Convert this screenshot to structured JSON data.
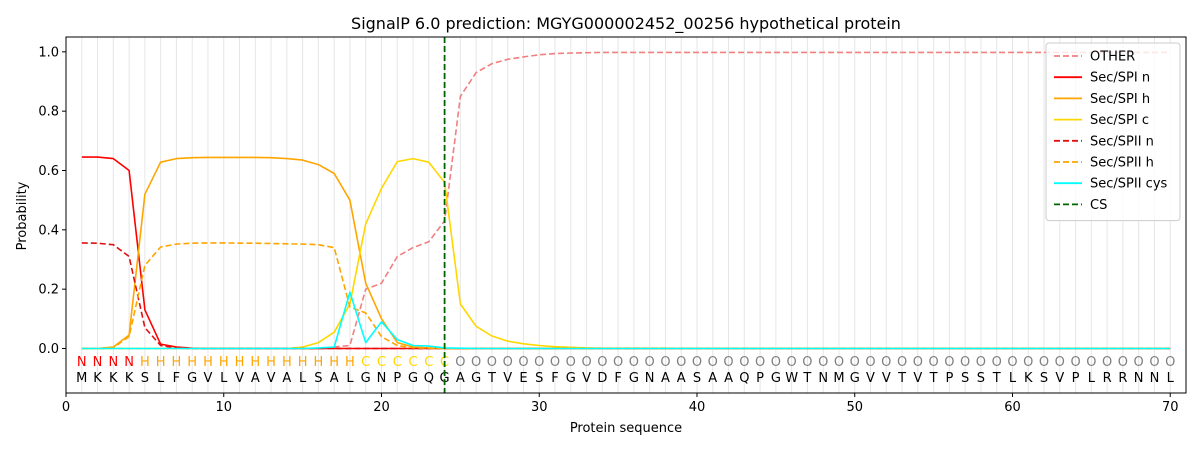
{
  "chart_data": {
    "type": "line",
    "title": "SignalP 6.0 prediction: MGYG000002452_00256 hypothetical protein",
    "xlabel": "Protein sequence",
    "ylabel": "Probability",
    "xlim": [
      0,
      71
    ],
    "ylim": [
      -0.15,
      1.05
    ],
    "x_ticks": [
      0,
      10,
      20,
      30,
      40,
      50,
      60,
      70
    ],
    "y_ticks": [
      0.0,
      0.2,
      0.4,
      0.6,
      0.8,
      1.0
    ],
    "y_tick_labels": [
      "0.0",
      "0.2",
      "0.4",
      "0.6",
      "0.8",
      "1.0"
    ],
    "grid": "vertical lines at each residue",
    "legend_position": "top-right",
    "cleavage_site": 24,
    "sequence": [
      "M",
      "K",
      "K",
      "K",
      "S",
      "L",
      "F",
      "G",
      "V",
      "L",
      "V",
      "A",
      "V",
      "A",
      "L",
      "S",
      "A",
      "L",
      "G",
      "N",
      "P",
      "G",
      "Q",
      "G",
      "A",
      "G",
      "T",
      "V",
      "E",
      "S",
      "F",
      "G",
      "V",
      "D",
      "F",
      "G",
      "N",
      "A",
      "A",
      "S",
      "A",
      "A",
      "Q",
      "P",
      "G",
      "W",
      "T",
      "N",
      "M",
      "G",
      "V",
      "V",
      "T",
      "V",
      "T",
      "P",
      "S",
      "S",
      "T",
      "L",
      "K",
      "S",
      "V",
      "P",
      "L",
      "R",
      "R",
      "N",
      "N",
      "L"
    ],
    "labels": [
      "N",
      "N",
      "N",
      "N",
      "H",
      "H",
      "H",
      "H",
      "H",
      "H",
      "H",
      "H",
      "H",
      "H",
      "H",
      "H",
      "H",
      "H",
      "C",
      "C",
      "C",
      "C",
      "C",
      "C",
      "O",
      "O",
      "O",
      "O",
      "O",
      "O",
      "O",
      "O",
      "O",
      "O",
      "O",
      "O",
      "O",
      "O",
      "O",
      "O",
      "O",
      "O",
      "O",
      "O",
      "O",
      "O",
      "O",
      "O",
      "O",
      "O",
      "O",
      "O",
      "O",
      "O",
      "O",
      "O",
      "O",
      "O",
      "O",
      "O",
      "O",
      "O",
      "O",
      "O",
      "O",
      "O",
      "O",
      "O",
      "O",
      "O"
    ],
    "label_colors": {
      "N": "#ff0000",
      "H": "#ffa500",
      "C": "#ffd700",
      "O": "#808080"
    },
    "series": [
      {
        "name": "OTHER",
        "color": "#f08080",
        "dash": "dashed",
        "values": [
          0.0,
          0.0,
          0.0,
          0.0,
          0.0,
          0.0,
          0.0,
          0.0,
          0.0,
          0.0,
          0.0,
          0.0,
          0.0,
          0.0,
          0.0,
          0.0,
          0.005,
          0.01,
          0.2,
          0.22,
          0.31,
          0.34,
          0.36,
          0.43,
          0.85,
          0.93,
          0.96,
          0.975,
          0.983,
          0.99,
          0.994,
          0.996,
          0.997,
          0.998,
          0.998,
          0.998,
          0.998,
          0.998,
          0.998,
          0.998,
          0.998,
          0.998,
          0.998,
          0.998,
          0.998,
          0.998,
          0.998,
          0.998,
          0.998,
          0.998,
          0.998,
          0.998,
          0.998,
          0.998,
          0.998,
          0.998,
          0.998,
          0.998,
          0.998,
          0.998,
          0.998,
          0.998,
          0.998,
          0.998,
          0.998,
          0.998,
          0.998,
          0.998,
          0.998,
          0.998
        ]
      },
      {
        "name": "Sec/SPI n",
        "color": "#ff0000",
        "dash": "solid",
        "values": [
          0.645,
          0.645,
          0.64,
          0.6,
          0.13,
          0.015,
          0.005,
          0.001,
          0.0,
          0.0,
          0.0,
          0.0,
          0.0,
          0.0,
          0.0,
          0.0,
          0.0,
          0.0,
          0.0,
          0.0,
          0.0,
          0.0,
          0.0,
          0.0,
          0.0,
          0.0,
          0.0,
          0.0,
          0.0,
          0.0,
          0.0,
          0.0,
          0.0,
          0.0,
          0.0,
          0.0,
          0.0,
          0.0,
          0.0,
          0.0,
          0.0,
          0.0,
          0.0,
          0.0,
          0.0,
          0.0,
          0.0,
          0.0,
          0.0,
          0.0,
          0.0,
          0.0,
          0.0,
          0.0,
          0.0,
          0.0,
          0.0,
          0.0,
          0.0,
          0.0,
          0.0,
          0.0,
          0.0,
          0.0,
          0.0,
          0.0,
          0.0,
          0.0,
          0.0,
          0.0
        ]
      },
      {
        "name": "Sec/SPI h",
        "color": "#ffa500",
        "dash": "solid",
        "values": [
          0.0,
          0.0,
          0.005,
          0.045,
          0.52,
          0.628,
          0.64,
          0.643,
          0.644,
          0.644,
          0.644,
          0.644,
          0.643,
          0.64,
          0.635,
          0.62,
          0.59,
          0.5,
          0.22,
          0.1,
          0.02,
          0.005,
          0.002,
          0.0,
          0.0,
          0.0,
          0.0,
          0.0,
          0.0,
          0.0,
          0.0,
          0.0,
          0.0,
          0.0,
          0.0,
          0.0,
          0.0,
          0.0,
          0.0,
          0.0,
          0.0,
          0.0,
          0.0,
          0.0,
          0.0,
          0.0,
          0.0,
          0.0,
          0.0,
          0.0,
          0.0,
          0.0,
          0.0,
          0.0,
          0.0,
          0.0,
          0.0,
          0.0,
          0.0,
          0.0,
          0.0,
          0.0,
          0.0,
          0.0,
          0.0,
          0.0,
          0.0,
          0.0,
          0.0,
          0.0
        ]
      },
      {
        "name": "Sec/SPI c",
        "color": "#ffd700",
        "dash": "solid",
        "values": [
          0.0,
          0.0,
          0.0,
          0.0,
          0.0,
          0.0,
          0.0,
          0.0,
          0.0,
          0.0,
          0.0,
          0.0,
          0.0,
          0.0,
          0.005,
          0.02,
          0.055,
          0.15,
          0.42,
          0.54,
          0.63,
          0.64,
          0.628,
          0.56,
          0.15,
          0.075,
          0.042,
          0.025,
          0.016,
          0.01,
          0.006,
          0.004,
          0.002,
          0.001,
          0.001,
          0.001,
          0.001,
          0.001,
          0.0,
          0.0,
          0.0,
          0.0,
          0.0,
          0.0,
          0.0,
          0.0,
          0.0,
          0.0,
          0.0,
          0.0,
          0.0,
          0.0,
          0.0,
          0.0,
          0.0,
          0.0,
          0.0,
          0.0,
          0.0,
          0.0,
          0.0,
          0.0,
          0.0,
          0.0,
          0.0,
          0.0,
          0.0,
          0.0,
          0.0,
          0.0
        ]
      },
      {
        "name": "Sec/SPII n",
        "color": "#e01010",
        "dash": "dashed",
        "values": [
          0.356,
          0.355,
          0.35,
          0.31,
          0.07,
          0.01,
          0.002,
          0.0,
          0.0,
          0.0,
          0.0,
          0.0,
          0.0,
          0.0,
          0.0,
          0.0,
          0.0,
          0.0,
          0.0,
          0.0,
          0.0,
          0.0,
          0.0,
          0.0,
          0.0,
          0.0,
          0.0,
          0.0,
          0.0,
          0.0,
          0.0,
          0.0,
          0.0,
          0.0,
          0.0,
          0.0,
          0.0,
          0.0,
          0.0,
          0.0,
          0.0,
          0.0,
          0.0,
          0.0,
          0.0,
          0.0,
          0.0,
          0.0,
          0.0,
          0.0,
          0.0,
          0.0,
          0.0,
          0.0,
          0.0,
          0.0,
          0.0,
          0.0,
          0.0,
          0.0,
          0.0,
          0.0,
          0.0,
          0.0,
          0.0,
          0.0,
          0.0,
          0.0,
          0.0,
          0.0
        ]
      },
      {
        "name": "Sec/SPII h",
        "color": "#ffa500",
        "dash": "dashed",
        "values": [
          0.0,
          0.0,
          0.003,
          0.04,
          0.28,
          0.342,
          0.352,
          0.355,
          0.356,
          0.356,
          0.355,
          0.355,
          0.354,
          0.353,
          0.352,
          0.35,
          0.34,
          0.14,
          0.12,
          0.04,
          0.01,
          0.003,
          0.001,
          0.0,
          0.0,
          0.0,
          0.0,
          0.0,
          0.0,
          0.0,
          0.0,
          0.0,
          0.0,
          0.0,
          0.0,
          0.0,
          0.0,
          0.0,
          0.0,
          0.0,
          0.0,
          0.0,
          0.0,
          0.0,
          0.0,
          0.0,
          0.0,
          0.0,
          0.0,
          0.0,
          0.0,
          0.0,
          0.0,
          0.0,
          0.0,
          0.0,
          0.0,
          0.0,
          0.0,
          0.0,
          0.0,
          0.0,
          0.0,
          0.0,
          0.0,
          0.0,
          0.0,
          0.0,
          0.0,
          0.0
        ]
      },
      {
        "name": "Sec/SPII cys",
        "color": "#00ffff",
        "dash": "solid",
        "values": [
          0.0,
          0.0,
          0.0,
          0.0,
          0.0,
          0.0,
          0.0,
          0.0,
          0.0,
          0.0,
          0.0,
          0.0,
          0.0,
          0.0,
          0.0,
          0.002,
          0.005,
          0.19,
          0.02,
          0.09,
          0.03,
          0.01,
          0.008,
          0.002,
          0.001,
          0.0,
          0.0,
          0.0,
          0.0,
          0.0,
          0.0,
          0.0,
          0.0,
          0.0,
          0.0,
          0.0,
          0.0,
          0.0,
          0.0,
          0.0,
          0.0,
          0.0,
          0.0,
          0.0,
          0.0,
          0.0,
          0.0,
          0.0,
          0.0,
          0.0,
          0.0,
          0.0,
          0.0,
          0.0,
          0.0,
          0.0,
          0.0,
          0.0,
          0.0,
          0.0,
          0.0,
          0.0,
          0.0,
          0.0,
          0.0,
          0.0,
          0.0,
          0.0,
          0.0,
          0.0
        ]
      }
    ],
    "cs_legend": {
      "name": "CS",
      "color": "#006400",
      "dash": "dashed"
    }
  }
}
